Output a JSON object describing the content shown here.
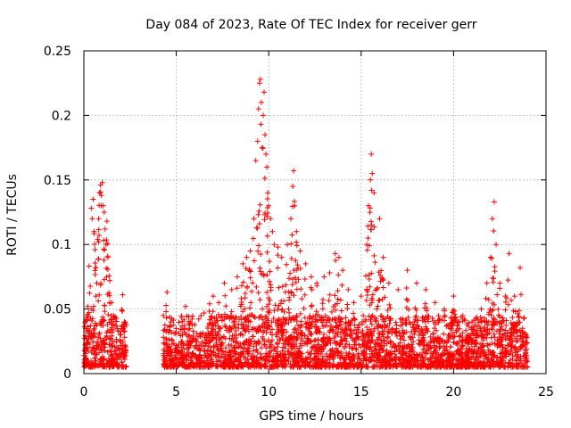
{
  "chart_data": {
    "type": "scatter",
    "title": "Day 084 of 2023, Rate Of TEC Index for receiver gerr",
    "xlabel": "GPS time / hours",
    "ylabel": "ROTI / TECUs",
    "xlim": [
      0,
      25
    ],
    "ylim": [
      0,
      0.25
    ],
    "xticks": [
      "0",
      "5",
      "10",
      "15",
      "20",
      "25"
    ],
    "yticks": [
      "0",
      "0.05",
      "0.1",
      "0.15",
      "0.2",
      "0.25"
    ],
    "xtick_values": [
      0,
      5,
      10,
      15,
      20,
      25
    ],
    "ytick_values": [
      0,
      0.05,
      0.1,
      0.15,
      0.2,
      0.25
    ],
    "grid": true,
    "marker": "plus",
    "color": "#ff0000",
    "data_gap_hours": [
      2.3,
      4.3
    ],
    "series": [
      {
        "points": [
          [
            0.0,
            0.014
          ],
          [
            0.1,
            0.035
          ],
          [
            0.2,
            0.046
          ],
          [
            0.3,
            0.031
          ],
          [
            0.4,
            0.128
          ],
          [
            0.45,
            0.12
          ],
          [
            0.5,
            0.135
          ],
          [
            0.55,
            0.11
          ],
          [
            0.6,
            0.096
          ],
          [
            0.65,
            0.082
          ],
          [
            0.7,
            0.07
          ],
          [
            0.75,
            0.104
          ],
          [
            0.8,
            0.12
          ],
          [
            0.85,
            0.14
          ],
          [
            0.9,
            0.146
          ],
          [
            0.95,
            0.138
          ],
          [
            1.0,
            0.148
          ],
          [
            1.05,
            0.13
          ],
          [
            1.1,
            0.125
          ],
          [
            1.15,
            0.112
          ],
          [
            1.2,
            0.1
          ],
          [
            1.25,
            0.118
          ],
          [
            1.3,
            0.09
          ],
          [
            1.4,
            0.072
          ],
          [
            1.5,
            0.055
          ],
          [
            1.6,
            0.045
          ],
          [
            1.8,
            0.035
          ],
          [
            2.0,
            0.03
          ],
          [
            2.1,
            0.061
          ],
          [
            2.2,
            0.04
          ],
          [
            4.3,
            0.045
          ],
          [
            4.5,
            0.063
          ],
          [
            4.7,
            0.04
          ],
          [
            5.0,
            0.035
          ],
          [
            5.5,
            0.052
          ],
          [
            6.0,
            0.038
          ],
          [
            6.5,
            0.047
          ],
          [
            6.8,
            0.054
          ],
          [
            7.0,
            0.06
          ],
          [
            7.3,
            0.055
          ],
          [
            7.6,
            0.07
          ],
          [
            8.0,
            0.065
          ],
          [
            8.3,
            0.075
          ],
          [
            8.6,
            0.085
          ],
          [
            8.8,
            0.09
          ],
          [
            9.0,
            0.095
          ],
          [
            9.2,
            0.12
          ],
          [
            9.3,
            0.165
          ],
          [
            9.4,
            0.18
          ],
          [
            9.45,
            0.205
          ],
          [
            9.5,
            0.225
          ],
          [
            9.55,
            0.228
          ],
          [
            9.6,
            0.21
          ],
          [
            9.7,
            0.2
          ],
          [
            9.75,
            0.218
          ],
          [
            9.8,
            0.185
          ],
          [
            9.85,
            0.17
          ],
          [
            9.9,
            0.16
          ],
          [
            9.95,
            0.14
          ],
          [
            10.0,
            0.13
          ],
          [
            10.1,
            0.12
          ],
          [
            10.2,
            0.11
          ],
          [
            10.3,
            0.1
          ],
          [
            10.5,
            0.098
          ],
          [
            10.7,
            0.09
          ],
          [
            11.0,
            0.1
          ],
          [
            11.2,
            0.12
          ],
          [
            11.3,
            0.145
          ],
          [
            11.35,
            0.157
          ],
          [
            11.4,
            0.13
          ],
          [
            11.5,
            0.11
          ],
          [
            11.7,
            0.095
          ],
          [
            12.0,
            0.085
          ],
          [
            12.3,
            0.075
          ],
          [
            12.6,
            0.07
          ],
          [
            13.0,
            0.075
          ],
          [
            13.3,
            0.078
          ],
          [
            13.6,
            0.093
          ],
          [
            13.8,
            0.09
          ],
          [
            14.0,
            0.08
          ],
          [
            14.3,
            0.065
          ],
          [
            14.6,
            0.055
          ],
          [
            15.0,
            0.06
          ],
          [
            15.3,
            0.1
          ],
          [
            15.4,
            0.13
          ],
          [
            15.5,
            0.15
          ],
          [
            15.55,
            0.17
          ],
          [
            15.6,
            0.155
          ],
          [
            15.7,
            0.14
          ],
          [
            16.0,
            0.12
          ],
          [
            16.2,
            0.09
          ],
          [
            16.5,
            0.07
          ],
          [
            17.0,
            0.065
          ],
          [
            17.5,
            0.08
          ],
          [
            18.0,
            0.07
          ],
          [
            18.5,
            0.065
          ],
          [
            19.0,
            0.055
          ],
          [
            19.5,
            0.05
          ],
          [
            20.0,
            0.06
          ],
          [
            20.5,
            0.045
          ],
          [
            21.0,
            0.04
          ],
          [
            21.5,
            0.05
          ],
          [
            21.8,
            0.07
          ],
          [
            22.0,
            0.09
          ],
          [
            22.1,
            0.12
          ],
          [
            22.2,
            0.133
          ],
          [
            22.3,
            0.1
          ],
          [
            22.5,
            0.07
          ],
          [
            22.8,
            0.06
          ],
          [
            23.0,
            0.093
          ],
          [
            23.3,
            0.06
          ],
          [
            23.6,
            0.082
          ],
          [
            23.9,
            0.03
          ]
        ],
        "baseline_band": [
          0.005,
          0.045
        ]
      }
    ]
  }
}
